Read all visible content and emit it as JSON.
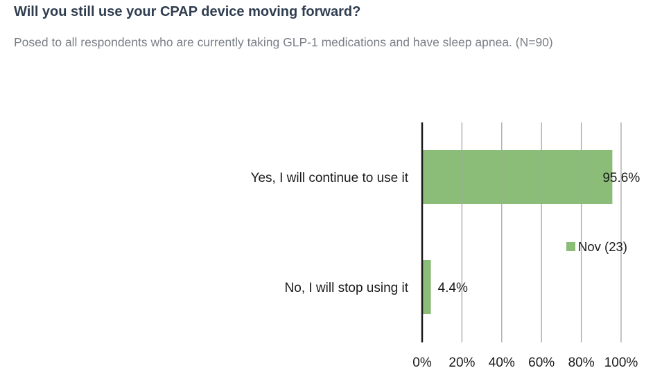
{
  "title": "Will you still use your CPAP device moving forward?",
  "subtitle": "Posed to all respondents who are currently taking GLP-1 medications and have sleep apnea. (N=90)",
  "chart_data": {
    "type": "bar",
    "orientation": "horizontal",
    "categories": [
      "Yes, I will continue to use it",
      "No, I will stop using it"
    ],
    "series": [
      {
        "name": "Nov (23)",
        "values": [
          95.6,
          4.4
        ],
        "labels": [
          "95.6%",
          "4.4%"
        ],
        "color": "#8bbd78"
      }
    ],
    "xlim": [
      0,
      100
    ],
    "xticks": [
      0,
      20,
      40,
      60,
      80,
      100
    ],
    "xtick_labels": [
      "0%",
      "20%",
      "40%",
      "60%",
      "80%",
      "100%"
    ],
    "grid": "vertical",
    "legend_position": "right",
    "axis_color": "#1a1a1a",
    "grid_color": "#a6a6a6"
  }
}
